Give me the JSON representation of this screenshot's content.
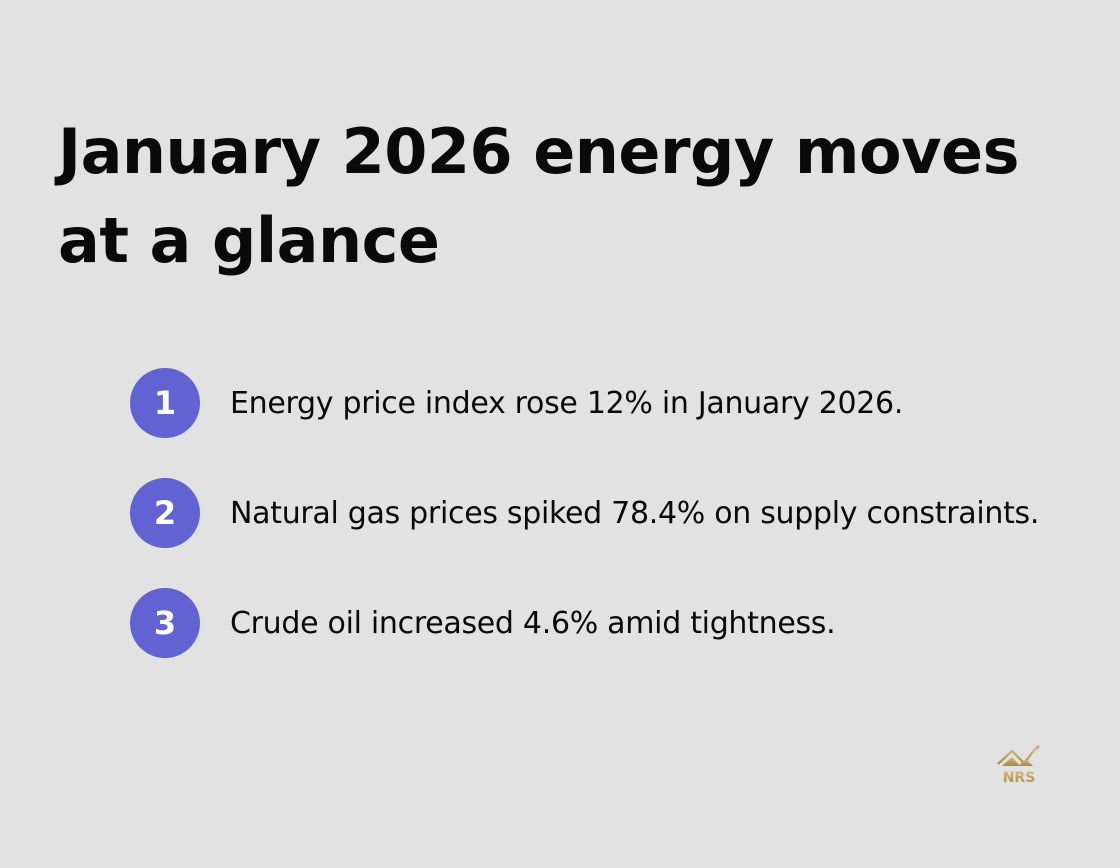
{
  "title": "January 2026 energy moves at a glance",
  "items": [
    {
      "number": "1",
      "text": "Energy price index rose 12% in January 2026."
    },
    {
      "number": "2",
      "text": "Natural gas prices spiked 78.4% on supply constraints."
    },
    {
      "number": "3",
      "text": "Crude oil increased 4.6% amid tightness."
    }
  ],
  "logo": {
    "text": "NRS",
    "icon": "house-chart-arrow-logo"
  },
  "colors": {
    "background": "#e1e2e1",
    "accent": "#6163d3",
    "logo_gold": "#b89a5a"
  }
}
